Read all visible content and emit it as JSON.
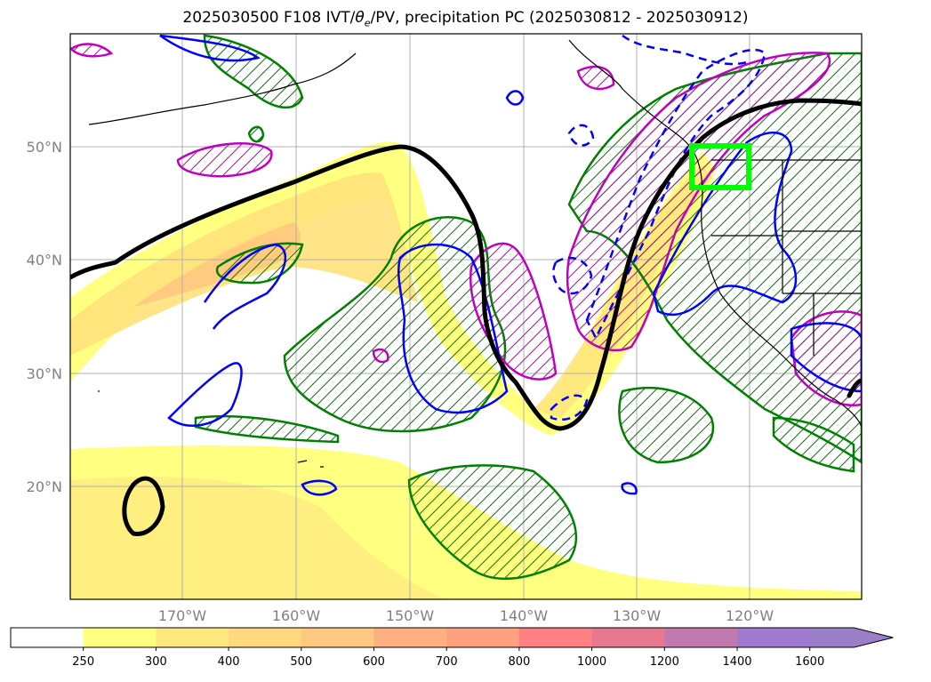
{
  "title": {
    "prefix": "2025030500 F108 IVT/",
    "theta": "θ",
    "theta_sub": "e",
    "suffix": "/PV, precipitation PC (2025030812 - 2025030912)"
  },
  "axes": {
    "lon_ticks": [
      "170°W",
      "160°W",
      "150°W",
      "140°W",
      "130°W",
      "120°W"
    ],
    "lat_ticks": [
      "50°N",
      "40°N",
      "30°N",
      "20°N"
    ]
  },
  "colorbar": {
    "levels": [
      "250",
      "300",
      "400",
      "500",
      "600",
      "700",
      "800",
      "1000",
      "1200",
      "1400",
      "1600"
    ],
    "colors": [
      "#ffffff",
      "#ffff80",
      "#ffe880",
      "#ffd880",
      "#ffc880",
      "#ffb080",
      "#ffa080",
      "#ff8080",
      "#e87890",
      "#c07ab0",
      "#a07ad0",
      "#9a7ec8"
    ]
  },
  "overlay": {
    "box_color": "#00ff00",
    "pv_color": "#000000",
    "theta_pos_color": "#0000ff",
    "precip_color": "#008000",
    "magenta_color": "#c000c0"
  }
}
